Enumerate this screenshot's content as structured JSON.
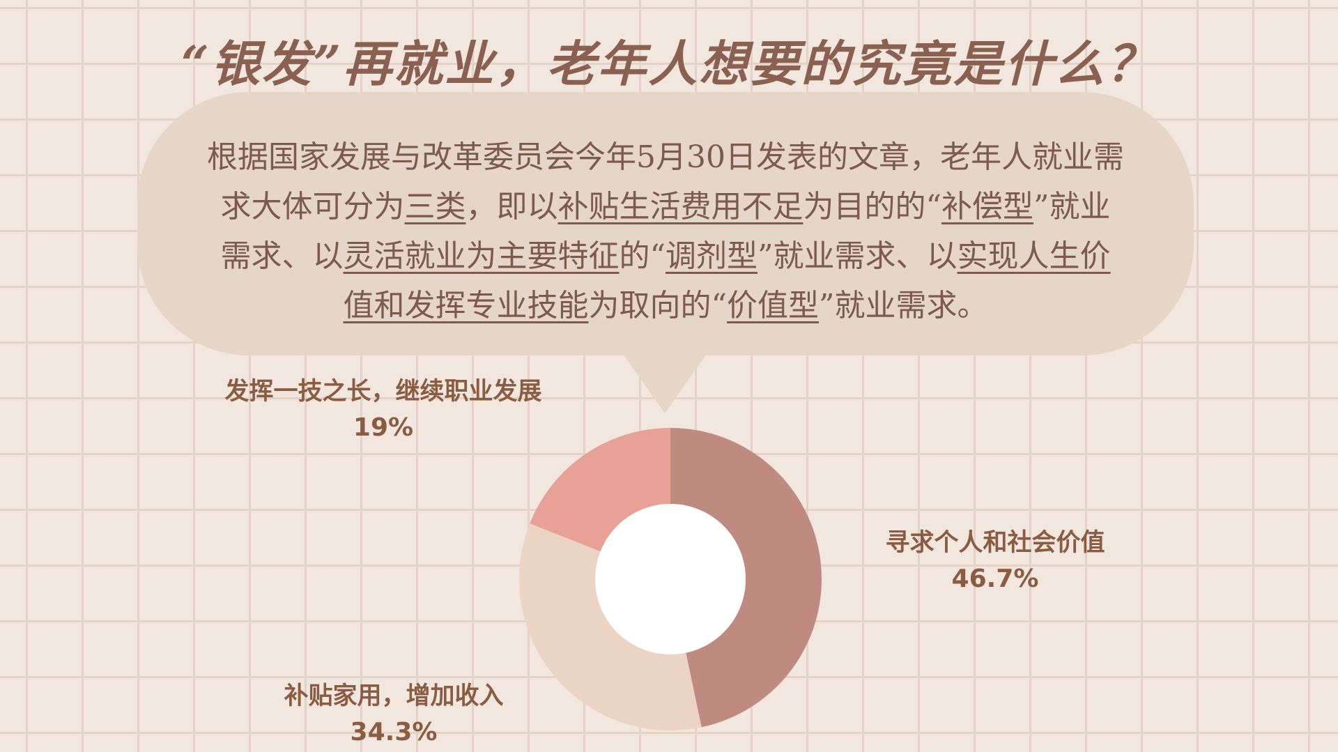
{
  "title": "“银发”再就业，老年人想要的究竟是什么？",
  "callout": {
    "line1": "根据国家发展与改革委员会今年5月30日发表的文章，老年人就业需",
    "line2_a": "求大体可分为",
    "line2_b": "三类",
    "line2_c": "，即以",
    "line2_d": "补贴生活费用不足",
    "line2_e": "为目的的“",
    "line2_f": "补偿型",
    "line2_g": "”就业",
    "line3_a": "需求、以",
    "line3_b": "灵活就业为主要特征",
    "line3_c": "的“",
    "line3_d": "调剂型",
    "line3_e": "”就业需求、以",
    "line3_f": "实现人生价",
    "line4_a": "值和发挥专业技能",
    "line4_b": "为取向的“",
    "line4_c": "价值型",
    "line4_d": "”就业需求。"
  },
  "colors": {
    "background": "#f1e7df",
    "grid": "#e3d2c5",
    "bubble": "#e5d6c8",
    "title": "#8a6150",
    "label": "#8a5d42"
  },
  "chart_data": {
    "type": "pie",
    "donut": true,
    "title": "",
    "categories": [
      "寻求个人和社会价值",
      "补贴家用，增加收入",
      "发挥一技之长，继续职业发展"
    ],
    "values": [
      46.7,
      34.3,
      19
    ],
    "labels": [
      "46.7%",
      "34.3%",
      "19%"
    ],
    "colors": [
      "#bf8a80",
      "#ecd4c4",
      "#e7a295"
    ],
    "start": "12 o'clock",
    "direction": "clockwise",
    "legend": "none"
  }
}
